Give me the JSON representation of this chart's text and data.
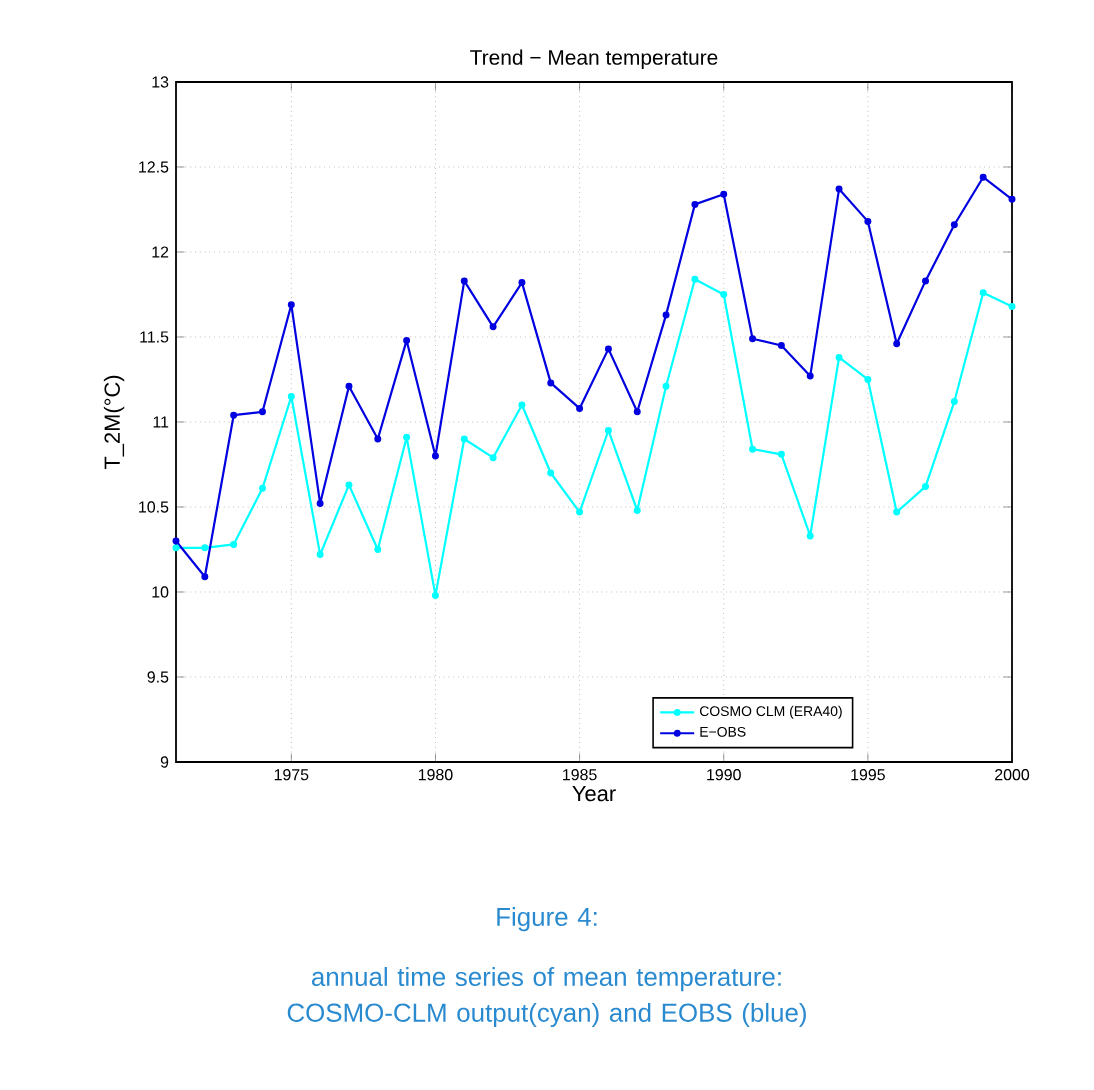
{
  "chart_data": {
    "type": "line",
    "title": "Trend  − Mean temperature",
    "xlabel": "Year",
    "ylabel": "T_2M(°C)",
    "x": [
      1971,
      1972,
      1973,
      1974,
      1975,
      1976,
      1977,
      1978,
      1979,
      1980,
      1981,
      1982,
      1983,
      1984,
      1985,
      1986,
      1987,
      1988,
      1989,
      1990,
      1991,
      1992,
      1993,
      1994,
      1995,
      1996,
      1997,
      1998,
      1999,
      2000
    ],
    "series": [
      {
        "name": "COSMO CLM (ERA40)",
        "color": "#00ffff",
        "values": [
          10.26,
          10.26,
          10.28,
          10.61,
          11.15,
          10.22,
          10.63,
          10.25,
          10.91,
          9.98,
          10.9,
          10.79,
          11.1,
          10.7,
          10.47,
          10.95,
          10.48,
          11.21,
          11.84,
          11.75,
          10.84,
          10.81,
          10.33,
          11.38,
          11.25,
          10.47,
          10.62,
          11.12,
          11.76,
          11.68
        ]
      },
      {
        "name": "E−OBS",
        "color": "#0000e0",
        "values": [
          10.3,
          10.09,
          11.04,
          11.06,
          11.69,
          10.52,
          11.21,
          10.9,
          11.48,
          10.8,
          11.83,
          11.56,
          11.82,
          11.23,
          11.08,
          11.43,
          11.06,
          11.63,
          12.28,
          12.34,
          11.49,
          11.45,
          11.27,
          12.37,
          12.18,
          11.46,
          11.83,
          12.16,
          12.44,
          12.31
        ]
      }
    ],
    "xlim": [
      1971,
      2000
    ],
    "ylim": [
      9,
      13
    ],
    "xticks": [
      1975,
      1980,
      1985,
      1990,
      1995,
      2000
    ],
    "yticks": [
      9,
      9.5,
      10,
      10.5,
      11,
      11.5,
      12,
      12.5,
      13
    ],
    "grid": true,
    "legend": "bottom",
    "marker": "circle",
    "line_style": "solid",
    "annotations": [
      "Figure 4:",
      "annual time series of mean temperature: COSMO-CLM output(cyan) and EOBS (blue)"
    ]
  }
}
